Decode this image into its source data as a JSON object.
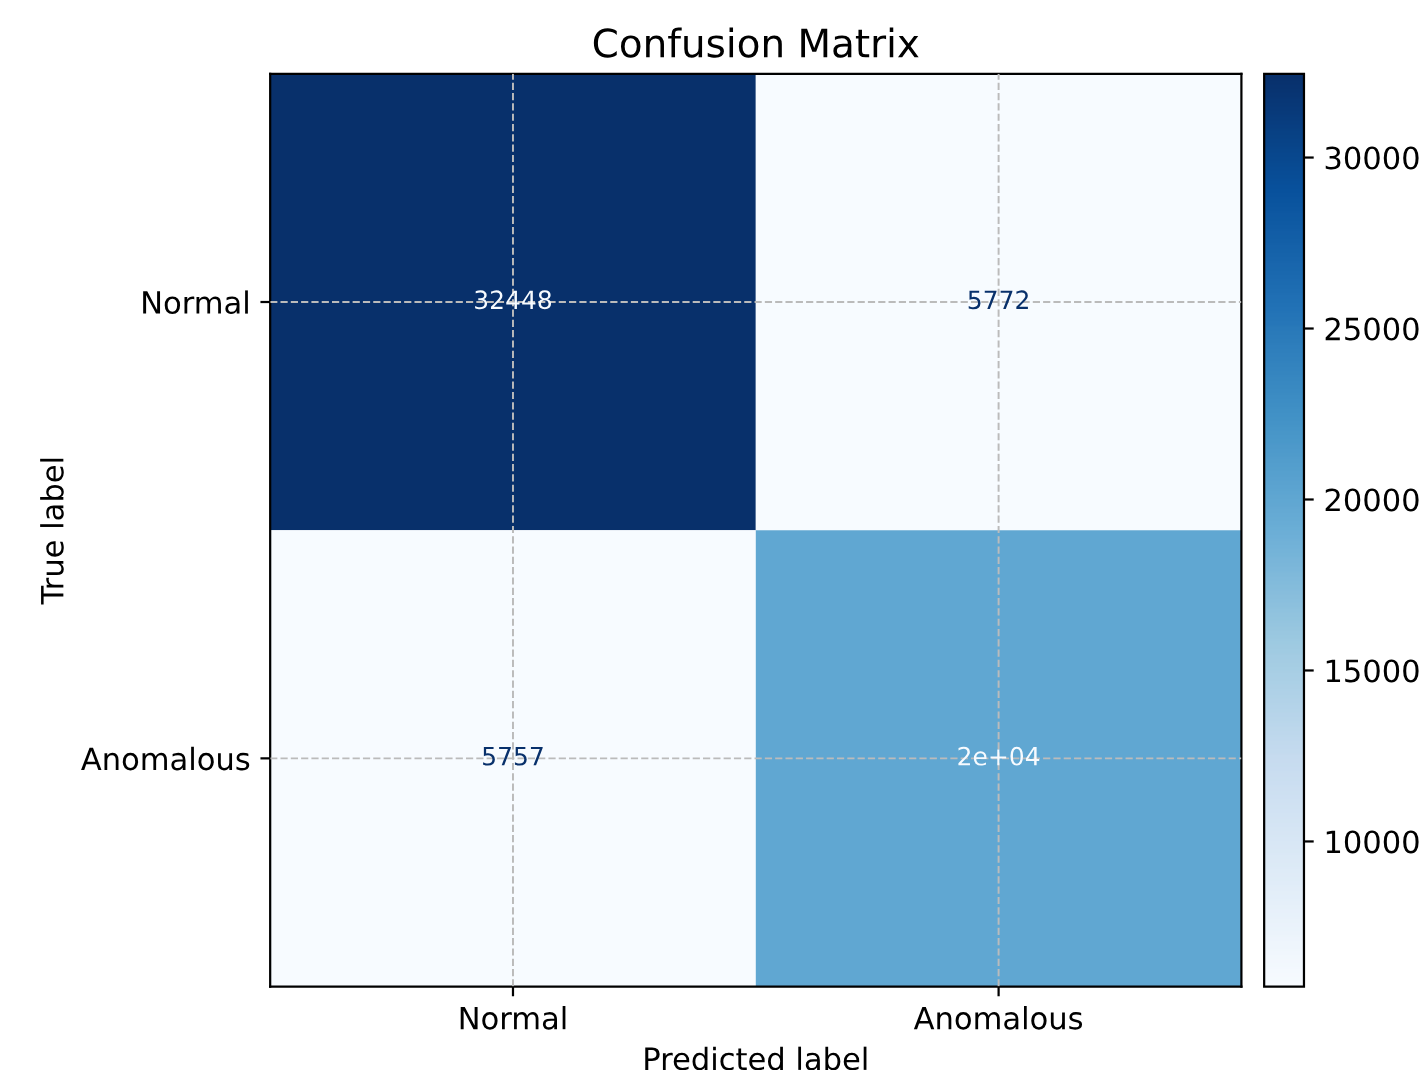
{
  "chart_data": {
    "type": "heatmap",
    "title": "Confusion Matrix",
    "xlabel": "Predicted label",
    "ylabel": "True label",
    "categories": [
      "Normal",
      "Anomalous"
    ],
    "y_categories": [
      "Normal",
      "Anomalous"
    ],
    "cells": [
      [
        32448,
        5772
      ],
      [
        5757,
        20000
      ]
    ],
    "cell_labels": [
      [
        "32448",
        "5772"
      ],
      [
        "5757",
        "2e+04"
      ]
    ],
    "clim": [
      5757,
      32448
    ],
    "cticks": [
      10000,
      15000,
      20000,
      25000,
      30000
    ],
    "grid": true
  }
}
